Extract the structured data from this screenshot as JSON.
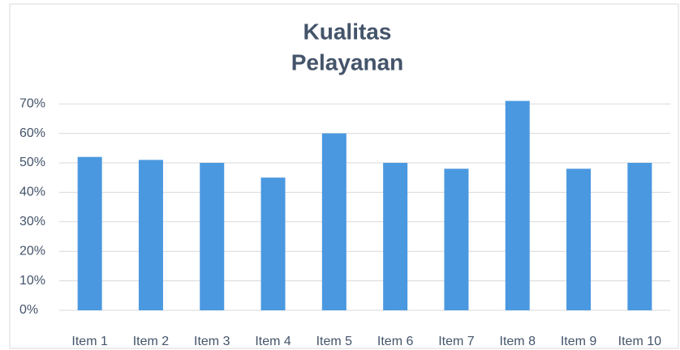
{
  "chart_data": {
    "type": "bar",
    "title": [
      "Kualitas",
      "Pelayanan"
    ],
    "categories": [
      "Item 1",
      "Item 2",
      "Item 3",
      "Item 4",
      "Item 5",
      "Item 6",
      "Item 7",
      "Item 8",
      "Item 9",
      "Item 10"
    ],
    "values": [
      0.52,
      0.51,
      0.5,
      0.45,
      0.6,
      0.5,
      0.48,
      0.71,
      0.48,
      0.5
    ],
    "color": "#4a98e0",
    "ylim": [
      0,
      0.75
    ],
    "yticks": [
      {
        "value": 0,
        "label": "0%"
      },
      {
        "value": 0.1,
        "label": "10%"
      },
      {
        "value": 0.2,
        "label": "20%"
      },
      {
        "value": 0.3,
        "label": "30%"
      },
      {
        "value": 0.4,
        "label": "40%"
      },
      {
        "value": 0.5,
        "label": "50%"
      },
      {
        "value": 0.6,
        "label": "60%"
      },
      {
        "value": 0.7,
        "label": "70%"
      }
    ],
    "grid": true
  }
}
